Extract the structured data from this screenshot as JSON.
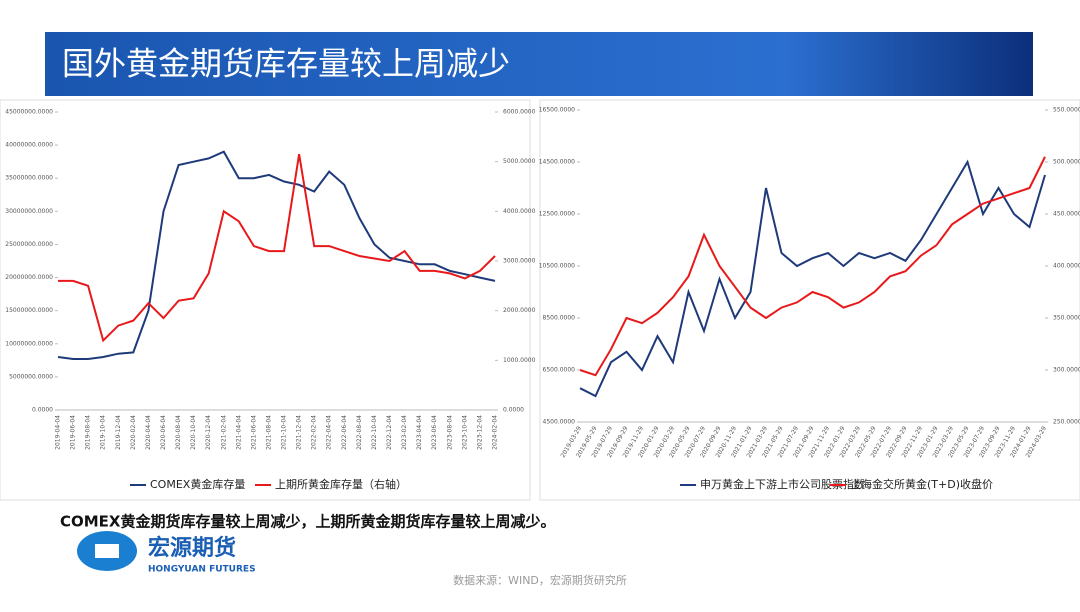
{
  "header": {
    "title": "国外黄金期货库存量较上周减少"
  },
  "summary": "COMEX黄金期货库存量较上周减少，上期所黄金期货库存量较上周减少。",
  "logo": {
    "name": "宏源期货",
    "subtitle": "HONGYUAN FUTURES"
  },
  "source": "数据来源：WIND，宏源期货研究所",
  "chart_data": [
    {
      "type": "line",
      "categories": [
        "2019-04-04",
        "2019-06-04",
        "2019-08-04",
        "2019-10-04",
        "2019-12-04",
        "2020-02-04",
        "2020-04-04",
        "2020-06-04",
        "2020-08-04",
        "2020-10-04",
        "2020-12-04",
        "2021-02-04",
        "2021-04-04",
        "2021-06-04",
        "2021-08-04",
        "2021-10-04",
        "2021-12-04",
        "2022-02-04",
        "2022-04-04",
        "2022-06-04",
        "2022-08-04",
        "2022-10-04",
        "2022-12-04",
        "2023-02-04",
        "2023-04-04",
        "2023-06-04",
        "2023-08-04",
        "2023-10-04",
        "2023-12-04",
        "2024-02-04"
      ],
      "series": [
        {
          "name": "COMEX黄金库存量",
          "color": "#1f3a7a",
          "values": [
            8000000,
            7700000,
            7700000,
            8000000,
            8500000,
            8700000,
            15000000,
            30000000,
            37000000,
            37500000,
            38000000,
            39000000,
            35000000,
            35000000,
            35500000,
            34500000,
            34000000,
            33000000,
            36000000,
            34000000,
            29000000,
            25000000,
            23000000,
            22500000,
            22000000,
            22000000,
            21000000,
            20500000,
            20000000,
            19500000
          ]
        },
        {
          "name": "上期所黄金库存量（右轴）",
          "color": "#e8191a",
          "axis": "y2",
          "values": [
            2600,
            2600,
            2500,
            1400,
            1700,
            1800,
            2150,
            1850,
            2200,
            2250,
            2750,
            4000,
            3800,
            3300,
            3200,
            3200,
            5150,
            3300,
            3300,
            3200,
            3100,
            3050,
            3000,
            3200,
            2800,
            2800,
            2750,
            2650,
            2800,
            3100
          ]
        }
      ],
      "ylim": [
        0,
        45000000
      ],
      "yticks": [
        {
          "value": 0,
          "label": "0.0000"
        },
        {
          "value": 5000000,
          "label": "5000000.0000"
        },
        {
          "value": 10000000,
          "label": "10000000.0000"
        },
        {
          "value": 15000000,
          "label": "15000000.0000"
        },
        {
          "value": 20000000,
          "label": "20000000.0000"
        },
        {
          "value": 25000000,
          "label": "25000000.0000"
        },
        {
          "value": 30000000,
          "label": "30000000.0000"
        },
        {
          "value": 35000000,
          "label": "35000000.0000"
        },
        {
          "value": 40000000,
          "label": "40000000.0000"
        },
        {
          "value": 45000000,
          "label": "45000000.0000"
        }
      ],
      "y2lim": [
        0,
        6000
      ],
      "y2ticks": [
        {
          "value": 0,
          "label": "0.0000"
        },
        {
          "value": 1000,
          "label": "1000.0000"
        },
        {
          "value": 2000,
          "label": "2000.0000"
        },
        {
          "value": 3000,
          "label": "3000.0000"
        },
        {
          "value": 4000,
          "label": "4000.0000"
        },
        {
          "value": 5000,
          "label": "5000.0000"
        },
        {
          "value": 6000,
          "label": "6000.0000"
        }
      ]
    },
    {
      "type": "line",
      "categories": [
        "2019-03-29",
        "2019-05-29",
        "2019-07-29",
        "2019-09-29",
        "2019-11-29",
        "2020-01-29",
        "2020-03-29",
        "2020-05-29",
        "2020-07-29",
        "2020-09-29",
        "2020-11-29",
        "2021-01-29",
        "2021-03-29",
        "2021-05-29",
        "2021-07-29",
        "2021-09-29",
        "2021-11-29",
        "2022-01-29",
        "2022-03-29",
        "2022-05-29",
        "2022-07-29",
        "2022-09-29",
        "2022-11-29",
        "2023-01-29",
        "2023-03-29",
        "2023-05-29",
        "2023-07-29",
        "2023-09-29",
        "2023-11-29",
        "2024-01-29",
        "2024-03-29"
      ],
      "series": [
        {
          "name": "申万黄金上下游上市公司股票指数",
          "color": "#1f3a7a",
          "values": [
            5800,
            5500,
            6800,
            7200,
            6500,
            7800,
            6800,
            9500,
            8000,
            10000,
            8500,
            9500,
            13500,
            11000,
            10500,
            10800,
            11000,
            10500,
            11000,
            10800,
            11000,
            10700,
            11500,
            12500,
            13500,
            14500,
            12500,
            13500,
            12500,
            12000,
            14000
          ]
        },
        {
          "name": "上海金交所黄金(T+D)收盘价",
          "color": "#e8191a",
          "axis": "y2",
          "values": [
            300,
            295,
            320,
            350,
            345,
            355,
            370,
            390,
            430,
            400,
            380,
            360,
            350,
            360,
            365,
            375,
            370,
            360,
            365,
            375,
            390,
            395,
            410,
            420,
            440,
            450,
            460,
            465,
            470,
            475,
            505
          ]
        }
      ],
      "ylim": [
        4500,
        16500
      ],
      "yticks": [
        {
          "value": 4500,
          "label": "4500.0000"
        },
        {
          "value": 6500,
          "label": "6500.0000"
        },
        {
          "value": 8500,
          "label": "8500.0000"
        },
        {
          "value": 10500,
          "label": "10500.0000"
        },
        {
          "value": 12500,
          "label": "12500.0000"
        },
        {
          "value": 14500,
          "label": "14500.0000"
        },
        {
          "value": 16500,
          "label": "16500.0000"
        }
      ],
      "y2lim": [
        250,
        550
      ],
      "y2ticks": [
        {
          "value": 250,
          "label": "250.0000"
        },
        {
          "value": 300,
          "label": "300.0000"
        },
        {
          "value": 350,
          "label": "350.0000"
        },
        {
          "value": 400,
          "label": "400.0000"
        },
        {
          "value": 450,
          "label": "450.0000"
        },
        {
          "value": 500,
          "label": "500.0000"
        },
        {
          "value": 550,
          "label": "550.0000"
        }
      ]
    }
  ]
}
